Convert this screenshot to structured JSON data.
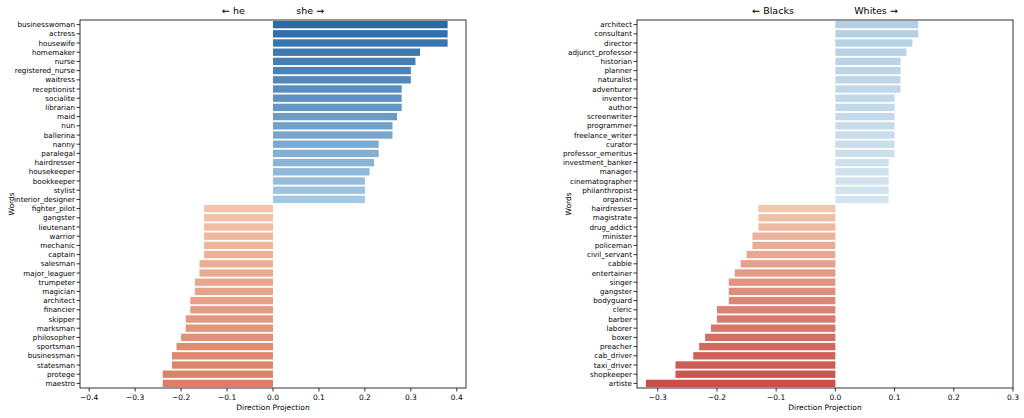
{
  "chart_data": [
    {
      "type": "bar",
      "orientation": "horizontal",
      "grid": false,
      "title": "← he                 she →",
      "x_label": "Direction Projection",
      "y_label": "Words",
      "categories": [
        "businesswoman",
        "actress",
        "housewife",
        "homemaker",
        "nurse",
        "registered_nurse",
        "waitress",
        "receptionist",
        "socialite",
        "librarian",
        "maid",
        "nun",
        "ballerina",
        "nanny",
        "paralegal",
        "hairdresser",
        "housekeeper",
        "bookkeeper",
        "stylist",
        "interior_designer",
        "fighter_pilot",
        "gangster",
        "lieutenant",
        "warrior",
        "mechanic",
        "captain",
        "salesman",
        "major_leaguer",
        "trumpeter",
        "magician",
        "architect",
        "financier",
        "skipper",
        "marksman",
        "philosopher",
        "sportsman",
        "businessman",
        "statesman",
        "protege",
        "maestro"
      ],
      "values": [
        0.38,
        0.38,
        0.38,
        0.32,
        0.31,
        0.3,
        0.3,
        0.28,
        0.28,
        0.28,
        0.27,
        0.26,
        0.26,
        0.23,
        0.23,
        0.22,
        0.21,
        0.2,
        0.2,
        0.2,
        -0.15,
        -0.15,
        -0.15,
        -0.15,
        -0.15,
        -0.15,
        -0.16,
        -0.16,
        -0.17,
        -0.17,
        -0.18,
        -0.18,
        -0.19,
        -0.19,
        -0.2,
        -0.21,
        -0.22,
        -0.22,
        -0.24,
        -0.24
      ],
      "colors": [
        "#2c6aa7",
        "#326faa",
        "#3974ad",
        "#3f79b0",
        "#457eb3",
        "#4b83b7",
        "#5288ba",
        "#588dbd",
        "#5e92c0",
        "#6497c3",
        "#6b9cc6",
        "#71a0c9",
        "#77a5cc",
        "#7daacf",
        "#84afd2",
        "#8ab4d6",
        "#90b9d9",
        "#96bedc",
        "#9dc3df",
        "#a3c8e2",
        "#f3c4a9",
        "#f2c0a5",
        "#f0bda2",
        "#efb99e",
        "#eeb59b",
        "#ecb297",
        "#ebae94",
        "#e9ab90",
        "#e8a78d",
        "#e7a389",
        "#e5a085",
        "#e49c82",
        "#e3987e",
        "#e1957b",
        "#e09177",
        "#de8d73",
        "#dd8a70",
        "#dc866c",
        "#da8369",
        "#d97f65"
      ],
      "xlim": [
        -0.42,
        0.42
      ],
      "xticks": [
        {
          "value": -0.4,
          "label": "−0.4"
        },
        {
          "value": -0.3,
          "label": "−0.3"
        },
        {
          "value": -0.2,
          "label": "−0.2"
        },
        {
          "value": -0.1,
          "label": "−0.1"
        },
        {
          "value": 0,
          "label": "0.0"
        },
        0.1,
        0.2,
        0.3,
        0.4
      ]
    },
    {
      "type": "bar",
      "orientation": "horizontal",
      "grid": false,
      "title": "← Blacks                    Whites →",
      "x_label": "Direction Projection",
      "y_label": "Words",
      "categories": [
        "architect",
        "consultant",
        "director",
        "adjunct_professor",
        "historian",
        "planner",
        "naturalist",
        "adventurer",
        "inventor",
        "author",
        "screenwriter",
        "programmer",
        "freelance_writer",
        "curator",
        "professor_emeritus",
        "investment_banker",
        "manager",
        "cinematographer",
        "philanthropist",
        "organist",
        "hairdresser",
        "magistrate",
        "drug_addict",
        "minister",
        "policeman",
        "civil_servant",
        "cabbie",
        "entertainer",
        "singer",
        "gangster",
        "bodyguard",
        "cleric",
        "barber",
        "laborer",
        "boxer",
        "preacher",
        "cab_driver",
        "taxi_driver",
        "shopkeeper",
        "artiste"
      ],
      "values": [
        0.14,
        0.14,
        0.13,
        0.12,
        0.11,
        0.11,
        0.11,
        0.11,
        0.1,
        0.1,
        0.1,
        0.1,
        0.1,
        0.1,
        0.1,
        0.09,
        0.09,
        0.09,
        0.09,
        0.09,
        -0.13,
        -0.13,
        -0.13,
        -0.14,
        -0.14,
        -0.15,
        -0.16,
        -0.17,
        -0.18,
        -0.18,
        -0.18,
        -0.2,
        -0.2,
        -0.21,
        -0.22,
        -0.23,
        -0.24,
        -0.27,
        -0.27,
        -0.32
      ],
      "colors": [
        "#b4cfe4",
        "#b6d0e5",
        "#b7d1e5",
        "#b9d2e6",
        "#bbd3e6",
        "#bcd5e7",
        "#bed6e7",
        "#bfd7e8",
        "#c1d8e9",
        "#c3d9e9",
        "#c4daea",
        "#c6dbea",
        "#c8dceb",
        "#c9ddeb",
        "#cbdeec",
        "#cce0ed",
        "#cee1ed",
        "#d0e2ee",
        "#d1e3ee",
        "#d3e4ef",
        "#f2c6ab",
        "#f0c0a6",
        "#eebaa1",
        "#ecb39c",
        "#e9ad97",
        "#e7a791",
        "#e5a18c",
        "#e39b87",
        "#e19482",
        "#df8e7d",
        "#dc8878",
        "#da8273",
        "#d87b6e",
        "#d67569",
        "#d46f64",
        "#d1695e",
        "#cf6359",
        "#cd5c54",
        "#cb564f",
        "#c9504a"
      ],
      "xlim": [
        -0.335,
        0.3
      ],
      "xticks": [
        {
          "value": -0.3,
          "label": "−0.3"
        },
        {
          "value": -0.2,
          "label": "−0.2"
        },
        {
          "value": -0.1,
          "label": "−0.1"
        },
        {
          "value": 0,
          "label": "0.0"
        },
        0.1,
        0.2,
        0.3
      ]
    }
  ]
}
